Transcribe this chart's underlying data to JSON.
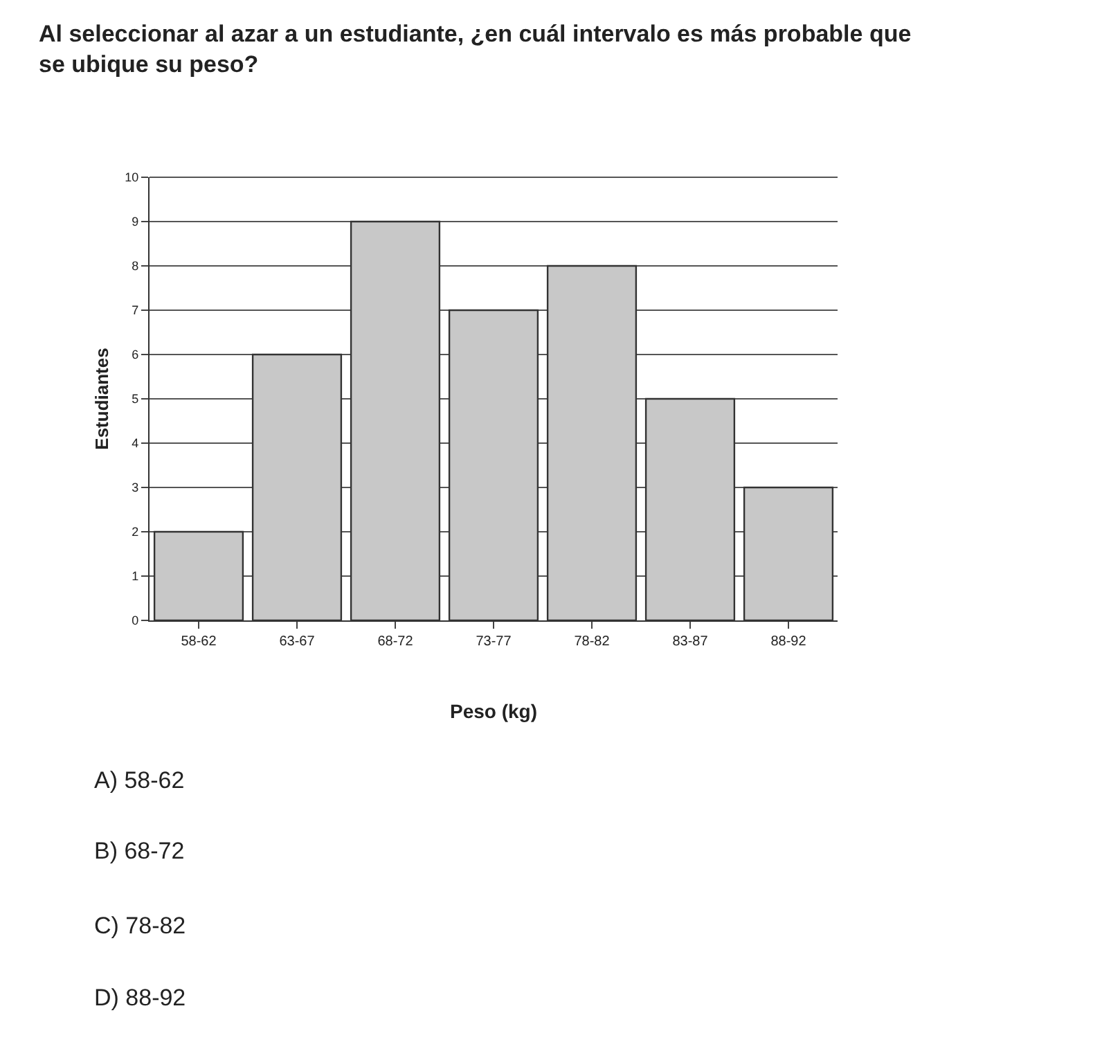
{
  "chart_data": {
    "type": "bar",
    "title": "Al seleccionar al azar a un estudiante, ¿en cuál intervalo es más probable que se ubique su peso?",
    "xlabel": "Peso (kg)",
    "ylabel": "Estudiantes",
    "categories": [
      "58-62",
      "63-67",
      "68-72",
      "73-77",
      "78-82",
      "83-87",
      "88-92"
    ],
    "values": [
      2,
      6,
      9,
      7,
      8,
      5,
      3
    ],
    "color": "#c8c8c8",
    "ylim": [
      0,
      10
    ],
    "yticks": [
      0,
      1,
      2,
      3,
      4,
      5,
      6,
      7,
      8,
      9,
      10
    ],
    "grid": "y",
    "annotations": [
      "A) 58-62",
      "B) 68-72",
      "C) 78-82",
      "D) 88-92"
    ]
  }
}
